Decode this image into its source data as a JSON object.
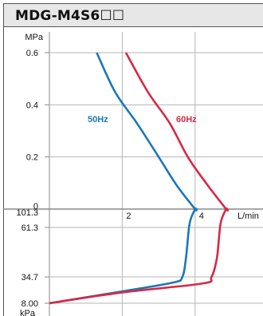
{
  "header": {
    "title": "MDG-M4S6☐☐"
  },
  "colors": {
    "s50": "#1a78b8",
    "s60": "#d42a45",
    "grid": "#b5b5b5",
    "axis": "#888888"
  },
  "chart_data": {
    "type": "line",
    "title": "MDG-M4S6☐☐",
    "xlabel": "L/min",
    "x_ticks": [
      "2",
      "4"
    ],
    "xlim": [
      0,
      4.9
    ],
    "pressure_axis": {
      "unit": "MPa",
      "ticks": [
        "0.6",
        "0.4",
        "0.2",
        "0"
      ],
      "ylim": [
        0,
        0.6
      ]
    },
    "vacuum_axis": {
      "unit": "kPa",
      "ticks": [
        "101.3",
        "61.3",
        "34.7",
        "8.00"
      ]
    },
    "series": [
      {
        "name": "50Hz",
        "pressure": {
          "x": [
            1.3,
            1.8,
            2.4,
            3.0,
            3.5,
            4.0
          ],
          "y": [
            0.6,
            0.45,
            0.33,
            0.2,
            0.09,
            0.0
          ]
        },
        "vacuum": {
          "x": [
            4.0,
            3.85,
            3.75,
            3.65,
            3.4,
            2.0,
            0.0
          ],
          "y": [
            101.3,
            70.0,
            45.0,
            34.7,
            29.0,
            20.0,
            8.0
          ]
        }
      },
      {
        "name": "60Hz",
        "pressure": {
          "x": [
            2.1,
            2.7,
            3.3,
            3.8,
            4.3,
            4.85
          ],
          "y": [
            0.6,
            0.45,
            0.33,
            0.2,
            0.1,
            0.0
          ]
        },
        "vacuum": {
          "x": [
            4.85,
            4.7,
            4.6,
            4.45,
            4.2,
            2.0,
            0.0
          ],
          "y": [
            101.3,
            70.0,
            45.0,
            34.7,
            28.0,
            19.0,
            8.0
          ]
        }
      }
    ]
  }
}
